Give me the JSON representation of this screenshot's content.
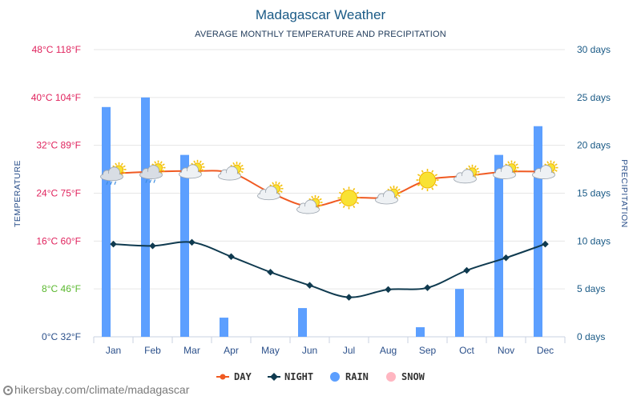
{
  "chart_data": {
    "type": "line",
    "title": "Madagascar Weather",
    "subtitle": "AVERAGE MONTHLY TEMPERATURE AND PRECIPITATION",
    "categories": [
      "Jan",
      "Feb",
      "Mar",
      "Apr",
      "May",
      "Jun",
      "Jul",
      "Aug",
      "Sep",
      "Oct",
      "Nov",
      "Dec"
    ],
    "series": [
      {
        "name": "DAY",
        "type": "line",
        "axis": "temperature",
        "color": "#f05a22",
        "values": [
          27.3,
          27.6,
          27.7,
          27.4,
          24.1,
          21.8,
          23.2,
          23.4,
          26.2,
          26.9,
          27.6,
          27.6
        ]
      },
      {
        "name": "NIGHT",
        "type": "line",
        "axis": "temperature",
        "color": "#0f3a4f",
        "values": [
          15.5,
          15.2,
          15.8,
          13.4,
          10.8,
          8.6,
          6.6,
          7.9,
          8.2,
          11.1,
          13.2,
          15.5
        ]
      },
      {
        "name": "RAIN",
        "type": "bar",
        "axis": "precipitation",
        "color": "#5c9fff",
        "values": [
          24,
          25,
          19,
          2,
          0,
          3,
          0,
          0,
          1,
          5,
          19,
          22
        ]
      },
      {
        "name": "SNOW",
        "type": "bar",
        "axis": "precipitation",
        "color": "#ffb6c1",
        "values": [
          0,
          0,
          0,
          0,
          0,
          0,
          0,
          0,
          0,
          0,
          0,
          0
        ]
      }
    ],
    "weather_icons": [
      "cloud-sun-rain-icon",
      "cloud-sun-rain-icon",
      "cloud-sun-icon",
      "cloud-sun-icon",
      "cloud-sun-icon",
      "cloud-sun-icon",
      "sun-icon",
      "cloud-sun-icon",
      "sun-icon",
      "cloud-sun-icon",
      "cloud-sun-icon",
      "cloud-sun-icon"
    ],
    "y_left": {
      "label": "TEMPERATURE",
      "range": [
        0,
        48
      ],
      "ticks": [
        {
          "value": 0,
          "label": "0°C 32°F",
          "color": "#2a4f8a"
        },
        {
          "value": 8,
          "label": "8°C 46°F",
          "color": "#5ab82e"
        },
        {
          "value": 16,
          "label": "16°C 60°F",
          "color": "#e0245e"
        },
        {
          "value": 24,
          "label": "24°C 75°F",
          "color": "#e0245e"
        },
        {
          "value": 32,
          "label": "32°C 89°F",
          "color": "#e0245e"
        },
        {
          "value": 40,
          "label": "40°C 104°F",
          "color": "#e0245e"
        },
        {
          "value": 48,
          "label": "48°C 118°F",
          "color": "#e0245e"
        }
      ]
    },
    "y_right": {
      "label": "PRECIPITATION",
      "range": [
        0,
        30
      ],
      "ticks": [
        {
          "value": 0,
          "label": "0 days"
        },
        {
          "value": 5,
          "label": "5 days"
        },
        {
          "value": 10,
          "label": "10 days"
        },
        {
          "value": 15,
          "label": "15 days"
        },
        {
          "value": 20,
          "label": "20 days"
        },
        {
          "value": 25,
          "label": "25 days"
        },
        {
          "value": 30,
          "label": "30 days"
        }
      ],
      "color": "#1a5a86"
    },
    "grid": true,
    "legend_position": "bottom"
  },
  "footer": {
    "source": "hikersbay.com/climate/madagascar"
  }
}
